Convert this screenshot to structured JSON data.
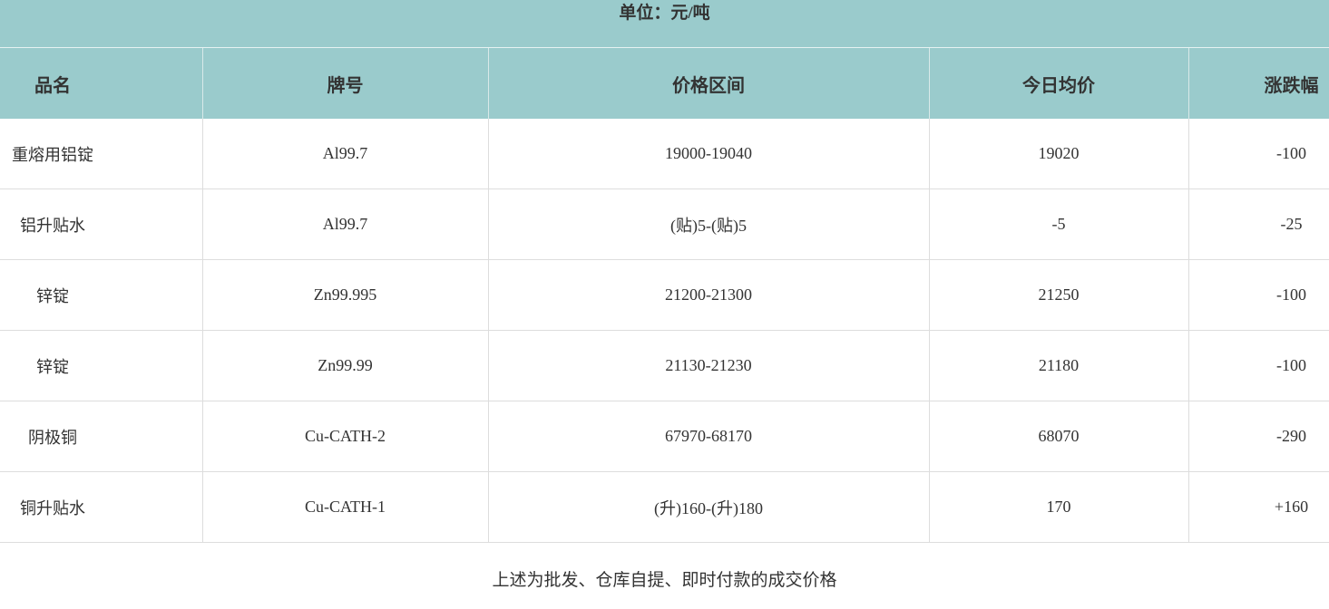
{
  "unit_label": "单位：元/吨",
  "headers": [
    "品名",
    "牌号",
    "价格区间",
    "今日均价",
    "涨跌幅"
  ],
  "rows": [
    [
      "重熔用铝锭",
      "Al99.7",
      "19000-19040",
      "19020",
      "-100"
    ],
    [
      "铝升贴水",
      "Al99.7",
      "(贴)5-(贴)5",
      "-5",
      "-25"
    ],
    [
      "锌锭",
      "Zn99.995",
      "21200-21300",
      "21250",
      "-100"
    ],
    [
      "锌锭",
      "Zn99.99",
      "21130-21230",
      "21180",
      "-100"
    ],
    [
      "阴极铜",
      "Cu-CATH-2",
      "67970-68170",
      "68070",
      "-290"
    ],
    [
      "铜升贴水",
      "Cu-CATH-1",
      "(升)160-(升)180",
      "170",
      "+160"
    ]
  ],
  "footer_note": "上述为批发、仓库自提、即时付款的成交价格",
  "colors": {
    "header_bg": "#9acbcc",
    "text": "#333333",
    "border": "#dddddd"
  }
}
